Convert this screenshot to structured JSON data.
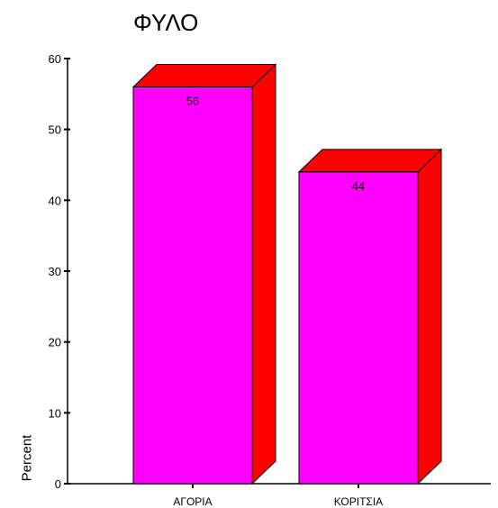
{
  "chart_data": {
    "type": "bar",
    "title": "ΦΥΛΟ",
    "xlabel": "",
    "ylabel": "Percent",
    "categories": [
      "ΑΓΟΡΙΑ",
      "ΚΟΡΙΤΣΙΑ"
    ],
    "values": [
      56,
      44
    ],
    "data_labels": [
      "56",
      "44"
    ],
    "ylim": [
      0,
      60
    ],
    "yticks": [
      0,
      10,
      20,
      30,
      40,
      50,
      60
    ],
    "grid": false,
    "style": "3d-bar",
    "colors": {
      "front": "#ff00ff",
      "side": "#ff0000",
      "top": "#ff0000",
      "outline": "#000000"
    }
  }
}
